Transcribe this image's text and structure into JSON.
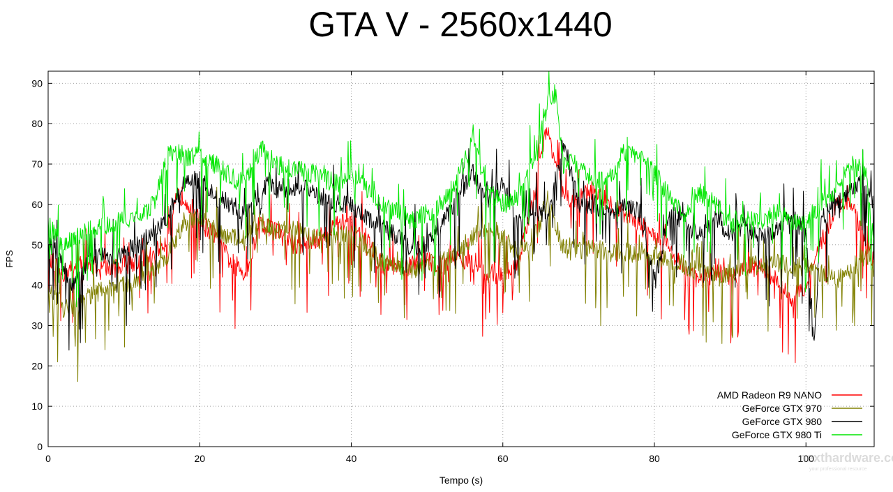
{
  "chart_data": {
    "type": "line",
    "title": "GTA V - 2560x1440",
    "xlabel": "Tempo (s)",
    "ylabel": "FPS",
    "xlim": [
      0,
      109
    ],
    "ylim": [
      0,
      93
    ],
    "xticks": [
      0,
      20,
      40,
      60,
      80,
      100
    ],
    "yticks": [
      0,
      10,
      20,
      30,
      40,
      50,
      60,
      70,
      80,
      90
    ],
    "grid": true,
    "legend_position": "bottom-right",
    "series": [
      {
        "name": "AMD Radeon R9 NANO",
        "color": "#ff0000",
        "x": [
          0,
          2,
          4,
          6,
          8,
          10,
          12,
          14,
          16,
          17,
          18,
          20,
          22,
          24,
          26,
          28,
          30,
          32,
          34,
          36,
          38,
          40,
          42,
          44,
          46,
          48,
          50,
          52,
          54,
          56,
          58,
          60,
          62,
          64,
          65,
          66,
          67,
          68,
          70,
          72,
          74,
          76,
          78,
          80,
          82,
          84,
          86,
          88,
          90,
          92,
          94,
          96,
          98,
          100,
          102,
          104,
          106,
          108,
          109
        ],
        "y": [
          46,
          43,
          45,
          45,
          44,
          45,
          46,
          48,
          52,
          62,
          62,
          56,
          52,
          46,
          43,
          55,
          54,
          50,
          50,
          52,
          55,
          56,
          51,
          45,
          44,
          45,
          46,
          45,
          47,
          45,
          43,
          42,
          46,
          60,
          74,
          78,
          70,
          62,
          61,
          64,
          60,
          58,
          55,
          52,
          49,
          44,
          41,
          43,
          42,
          44,
          45,
          41,
          37,
          40,
          50,
          60,
          60,
          50,
          45
        ]
      },
      {
        "name": "GeForce GTX 970",
        "color": "#808000",
        "x": [
          0,
          2,
          4,
          6,
          8,
          10,
          12,
          14,
          16,
          18,
          20,
          22,
          24,
          26,
          28,
          30,
          32,
          34,
          36,
          38,
          40,
          42,
          44,
          46,
          48,
          50,
          52,
          54,
          56,
          58,
          60,
          62,
          64,
          66,
          68,
          70,
          72,
          74,
          76,
          78,
          80,
          82,
          84,
          86,
          88,
          90,
          92,
          94,
          96,
          98,
          100,
          102,
          104,
          106,
          108,
          109
        ],
        "y": [
          40,
          34,
          35,
          38,
          39,
          40,
          41,
          44,
          48,
          56,
          56,
          54,
          52,
          51,
          56,
          53,
          55,
          53,
          51,
          52,
          53,
          50,
          46,
          45,
          44,
          45,
          46,
          48,
          52,
          55,
          52,
          48,
          52,
          60,
          49,
          49,
          49,
          48,
          48,
          48,
          47,
          46,
          45,
          43,
          43,
          43,
          45,
          45,
          46,
          44,
          45,
          43,
          41,
          44,
          48,
          44
        ]
      },
      {
        "name": "GeForce GTX 980",
        "color": "#000000",
        "x": [
          0,
          2,
          3,
          4,
          6,
          8,
          10,
          12,
          14,
          16,
          18,
          20,
          22,
          24,
          26,
          28,
          29,
          30,
          32,
          34,
          36,
          38,
          40,
          42,
          44,
          46,
          48,
          50,
          52,
          54,
          56,
          58,
          60,
          62,
          64,
          66,
          68,
          70,
          72,
          74,
          76,
          78,
          80,
          82,
          84,
          86,
          88,
          90,
          92,
          94,
          96,
          98,
          100,
          101,
          102,
          104,
          106,
          108,
          109
        ],
        "y": [
          52,
          45,
          40,
          42,
          47,
          47,
          48,
          50,
          52,
          58,
          66,
          66,
          62,
          60,
          58,
          60,
          67,
          64,
          64,
          65,
          62,
          60,
          60,
          57,
          55,
          52,
          49,
          50,
          55,
          62,
          68,
          60,
          65,
          55,
          58,
          58,
          76,
          60,
          60,
          58,
          60,
          58,
          40,
          58,
          56,
          52,
          56,
          53,
          55,
          52,
          53,
          58,
          52,
          25,
          55,
          60,
          64,
          64,
          60
        ]
      },
      {
        "name": "GeForce GTX 980 Ti",
        "color": "#00e600",
        "x": [
          0,
          2,
          4,
          6,
          8,
          10,
          12,
          14,
          16,
          18,
          20,
          22,
          24,
          26,
          28,
          30,
          32,
          34,
          36,
          38,
          40,
          42,
          44,
          46,
          48,
          50,
          52,
          54,
          56,
          58,
          60,
          62,
          64,
          66,
          67,
          68,
          70,
          72,
          74,
          76,
          78,
          80,
          82,
          84,
          86,
          88,
          90,
          92,
          94,
          96,
          98,
          100,
          102,
          104,
          106,
          108,
          109
        ],
        "y": [
          55,
          50,
          52,
          54,
          55,
          56,
          57,
          60,
          73,
          72,
          72,
          70,
          67,
          65,
          74,
          70,
          69,
          68,
          67,
          65,
          68,
          64,
          60,
          58,
          56,
          58,
          60,
          66,
          76,
          64,
          60,
          62,
          70,
          85,
          88,
          70,
          70,
          66,
          66,
          73,
          72,
          68,
          62,
          58,
          63,
          60,
          55,
          56,
          56,
          58,
          56,
          55,
          60,
          64,
          70,
          68,
          48
        ]
      }
    ]
  },
  "watermark": {
    "brand": "nexthardware.com",
    "tagline": "your professional resource"
  }
}
